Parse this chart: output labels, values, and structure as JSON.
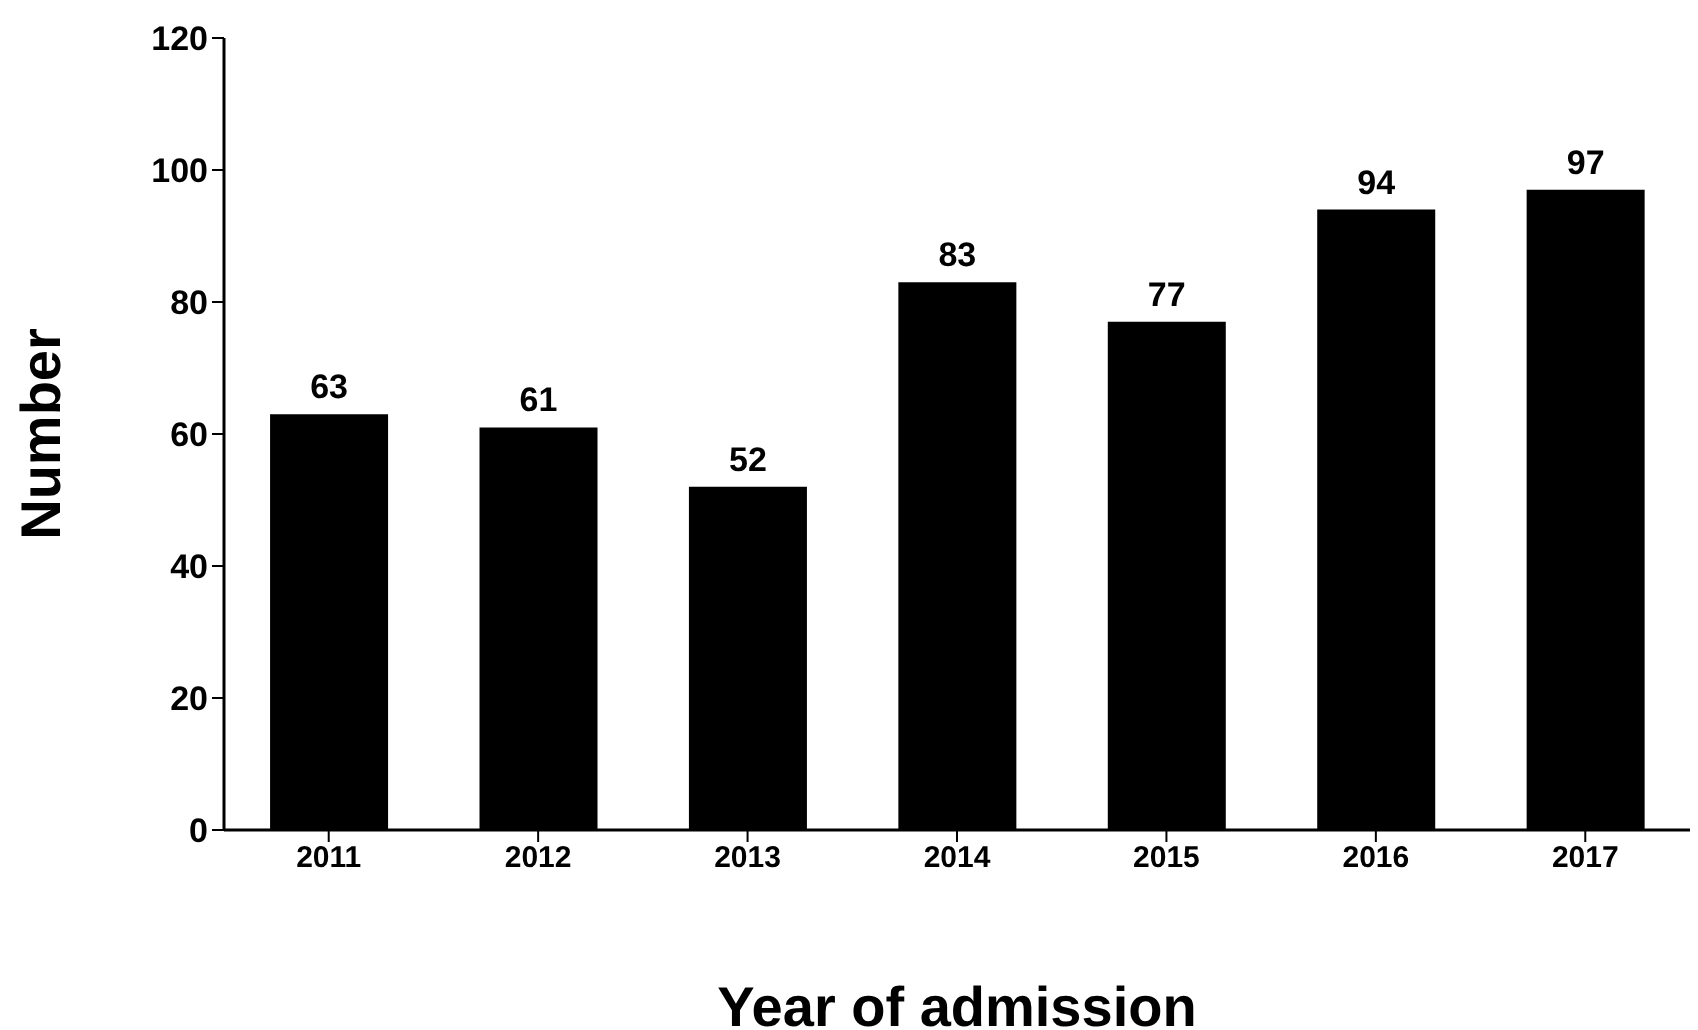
{
  "chart_data": {
    "type": "bar",
    "xlabel": "Year of admission",
    "ylabel": "Number",
    "categories": [
      "2011",
      "2012",
      "2013",
      "2014",
      "2015",
      "2016",
      "2017"
    ],
    "values": [
      63,
      61,
      52,
      83,
      77,
      94,
      97
    ],
    "color": "#000000",
    "ylim": [
      0,
      120
    ],
    "yticks": [
      0,
      20,
      40,
      60,
      80,
      100,
      120
    ],
    "grid": false,
    "legend": false,
    "data_labels": true
  }
}
